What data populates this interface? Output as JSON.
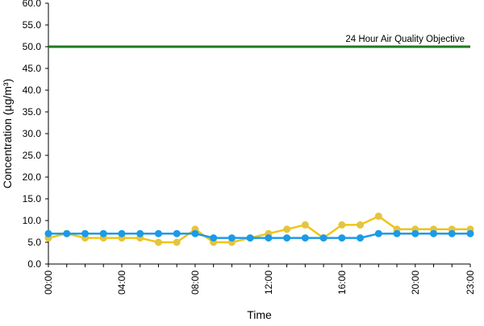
{
  "chart_data": {
    "type": "line",
    "title": "",
    "xlabel": "Time",
    "ylabel": "Concentration (µg/m³)",
    "ylim": [
      0,
      60
    ],
    "y_ticks": [
      "0.0",
      "5.0",
      "10.0",
      "15.0",
      "20.0",
      "25.0",
      "30.0",
      "35.0",
      "40.0",
      "45.0",
      "50.0",
      "55.0",
      "60.0"
    ],
    "x": [
      "00:00",
      "01:00",
      "02:00",
      "03:00",
      "04:00",
      "05:00",
      "06:00",
      "07:00",
      "08:00",
      "09:00",
      "10:00",
      "11:00",
      "12:00",
      "13:00",
      "14:00",
      "15:00",
      "16:00",
      "17:00",
      "18:00",
      "19:00",
      "20:00",
      "21:00",
      "22:00",
      "23:00"
    ],
    "x_tick_labels": [
      "00:00",
      "04:00",
      "08:00",
      "12:00",
      "16:00",
      "20:00",
      "23:00"
    ],
    "grid": false,
    "legend": "none",
    "series": [
      {
        "color": "#f0c419",
        "marker_color": "#e0c44e",
        "values": [
          6,
          7,
          6,
          6,
          6,
          6,
          5,
          5,
          8,
          5,
          5,
          6,
          7,
          8,
          9,
          6,
          9,
          9,
          11,
          8,
          8,
          8,
          8,
          8
        ]
      },
      {
        "color": "#1a9be8",
        "marker_color": "#1a9be8",
        "values": [
          7,
          7,
          7,
          7,
          7,
          7,
          7,
          7,
          7,
          6,
          6,
          6,
          6,
          6,
          6,
          6,
          6,
          6,
          7,
          7,
          7,
          7,
          7,
          7
        ]
      }
    ],
    "reference_line": {
      "value": 50,
      "label": "24 Hour Air Quality Objective",
      "color": "#1e7a1e"
    }
  }
}
